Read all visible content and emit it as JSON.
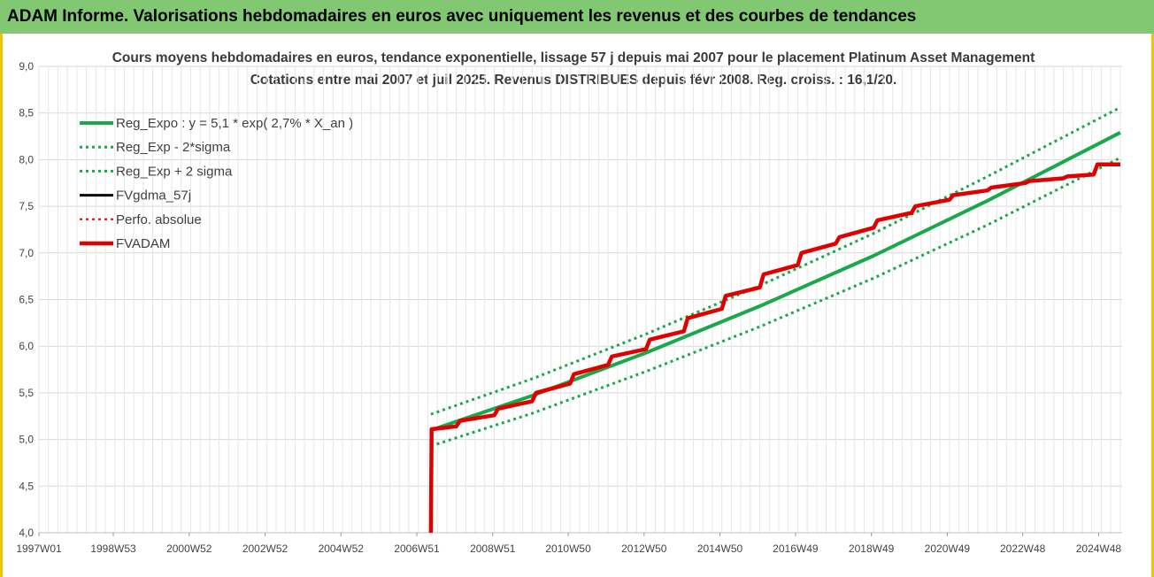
{
  "header": {
    "title": "ADAM Informe. Valorisations hebdomadaires en euros avec uniquement les revenus et des courbes de tendances"
  },
  "colors": {
    "header_bg": "#82c873",
    "frame": "#f2c400",
    "reg_expo": "#1aa84b",
    "fv_gdma": "#000000",
    "fv_adam": "#e00000",
    "grid": "#d9d9d9"
  },
  "chart_data": {
    "type": "line",
    "title": "Cours moyens hebdomadaires en euros, tendance exponentielle, lissage 57 j depuis mai 2007 pour le placement Platinum Asset Management",
    "subtitle": "Cotations entre mai 2007 et juil 2025. Revenus DISTRIBUES depuis févr 2008. Reg. croiss. : 16,1/20.",
    "xlabel": "",
    "ylabel": "",
    "ylim": [
      4.0,
      9.0
    ],
    "yticks": [
      "4,0",
      "4,5",
      "5,0",
      "5,5",
      "6,0",
      "6,5",
      "7,0",
      "7,5",
      "8,0",
      "8,5",
      "9,0"
    ],
    "xlim": [
      1997.0,
      2025.55
    ],
    "xticks": [
      {
        "x": 1997.0,
        "label": "1997W01"
      },
      {
        "x": 1998.96,
        "label": "1998W53"
      },
      {
        "x": 2000.96,
        "label": "2000W52"
      },
      {
        "x": 2002.96,
        "label": "2002W52"
      },
      {
        "x": 2004.96,
        "label": "2004W52"
      },
      {
        "x": 2006.96,
        "label": "2006W51"
      },
      {
        "x": 2008.96,
        "label": "2008W51"
      },
      {
        "x": 2010.95,
        "label": "2010W50"
      },
      {
        "x": 2012.95,
        "label": "2012W50"
      },
      {
        "x": 2014.95,
        "label": "2014W50"
      },
      {
        "x": 2016.94,
        "label": "2016W49"
      },
      {
        "x": 2018.94,
        "label": "2018W49"
      },
      {
        "x": 2020.94,
        "label": "2020W49"
      },
      {
        "x": 2022.93,
        "label": "2022W48"
      },
      {
        "x": 2024.93,
        "label": "2024W48"
      }
    ],
    "grid": true,
    "legend_position": "top-left",
    "series": [
      {
        "name": "Reg_Expo : y = 5,1 * exp( 2,7% *  X_an )",
        "style": "solid",
        "color": "#1aa84b",
        "x": [
          2007.33,
          2010.0,
          2013.0,
          2016.0,
          2019.0,
          2022.0,
          2025.5
        ],
        "y": [
          5.1,
          5.47,
          5.93,
          6.43,
          6.97,
          7.56,
          8.29
        ]
      },
      {
        "name": "Reg_Exp - 2*sigma",
        "style": "dotted",
        "color": "#1aa84b",
        "x": [
          2007.33,
          2010.0,
          2013.0,
          2016.0,
          2019.0,
          2022.0,
          2025.5
        ],
        "y": [
          4.93,
          5.28,
          5.73,
          6.21,
          6.73,
          7.3,
          8.02
        ]
      },
      {
        "name": "Reg_Exp + 2 sigma",
        "style": "dotted",
        "color": "#1aa84b",
        "x": [
          2007.33,
          2010.0,
          2013.0,
          2016.0,
          2019.0,
          2022.0,
          2025.5
        ],
        "y": [
          5.27,
          5.65,
          6.13,
          6.65,
          7.21,
          7.82,
          8.56
        ]
      },
      {
        "name": "FVgdma_57j",
        "style": "solid",
        "color": "#000000",
        "x": [
          2007.33,
          2007.35,
          2008.0,
          2008.1,
          2009.0,
          2009.1,
          2010.0,
          2010.1,
          2011.0,
          2011.1,
          2012.0,
          2012.1,
          2013.0,
          2013.1,
          2014.0,
          2014.1,
          2015.0,
          2015.1,
          2016.0,
          2016.1,
          2017.0,
          2017.1,
          2018.0,
          2018.1,
          2019.0,
          2019.1,
          2020.0,
          2020.1,
          2021.0,
          2021.1,
          2022.0,
          2022.1,
          2023.0,
          2023.1,
          2024.0,
          2024.1,
          2024.8,
          2024.9,
          2025.5
        ],
        "y": [
          4.0,
          5.11,
          5.14,
          5.2,
          5.26,
          5.33,
          5.41,
          5.5,
          5.6,
          5.7,
          5.8,
          5.89,
          5.97,
          6.07,
          6.16,
          6.3,
          6.4,
          6.54,
          6.63,
          6.77,
          6.87,
          7.0,
          7.1,
          7.17,
          7.27,
          7.35,
          7.43,
          7.5,
          7.57,
          7.62,
          7.67,
          7.7,
          7.75,
          7.77,
          7.8,
          7.82,
          7.84,
          7.95,
          7.95
        ]
      },
      {
        "name": "Perfo. absolue",
        "style": "dotted",
        "color": "#e00000",
        "x": [
          2007.33,
          2007.35,
          2008.0,
          2008.1,
          2009.0,
          2009.1,
          2010.0,
          2010.1,
          2011.0,
          2011.1,
          2012.0,
          2012.1,
          2013.0,
          2013.1,
          2014.0,
          2014.1,
          2015.0,
          2015.1,
          2016.0,
          2016.1,
          2017.0,
          2017.1,
          2018.0,
          2018.1,
          2019.0,
          2019.1,
          2020.0,
          2020.1,
          2021.0,
          2021.1,
          2022.0,
          2022.1,
          2023.0,
          2023.1,
          2024.0,
          2024.1,
          2024.8,
          2024.9,
          2025.5
        ],
        "y": [
          4.0,
          5.11,
          5.14,
          5.2,
          5.26,
          5.33,
          5.41,
          5.5,
          5.6,
          5.7,
          5.8,
          5.89,
          5.97,
          6.07,
          6.16,
          6.3,
          6.4,
          6.54,
          6.63,
          6.77,
          6.87,
          7.0,
          7.1,
          7.17,
          7.27,
          7.35,
          7.43,
          7.5,
          7.57,
          7.62,
          7.67,
          7.7,
          7.75,
          7.77,
          7.8,
          7.82,
          7.84,
          7.95,
          7.95
        ]
      },
      {
        "name": "FVADAM",
        "style": "solid",
        "color": "#e00000",
        "x": [
          2007.33,
          2007.35,
          2008.0,
          2008.1,
          2009.0,
          2009.1,
          2010.0,
          2010.1,
          2011.0,
          2011.1,
          2012.0,
          2012.1,
          2013.0,
          2013.1,
          2014.0,
          2014.1,
          2015.0,
          2015.1,
          2016.0,
          2016.1,
          2017.0,
          2017.1,
          2018.0,
          2018.1,
          2019.0,
          2019.1,
          2020.0,
          2020.1,
          2021.0,
          2021.1,
          2022.0,
          2022.1,
          2023.0,
          2023.1,
          2024.0,
          2024.1,
          2024.8,
          2024.9,
          2025.5
        ],
        "y": [
          4.0,
          5.11,
          5.14,
          5.2,
          5.26,
          5.33,
          5.41,
          5.5,
          5.6,
          5.7,
          5.8,
          5.89,
          5.97,
          6.07,
          6.16,
          6.3,
          6.4,
          6.54,
          6.63,
          6.77,
          6.87,
          7.0,
          7.1,
          7.17,
          7.27,
          7.35,
          7.43,
          7.5,
          7.57,
          7.62,
          7.67,
          7.7,
          7.75,
          7.77,
          7.8,
          7.82,
          7.84,
          7.95,
          7.95
        ]
      }
    ]
  }
}
